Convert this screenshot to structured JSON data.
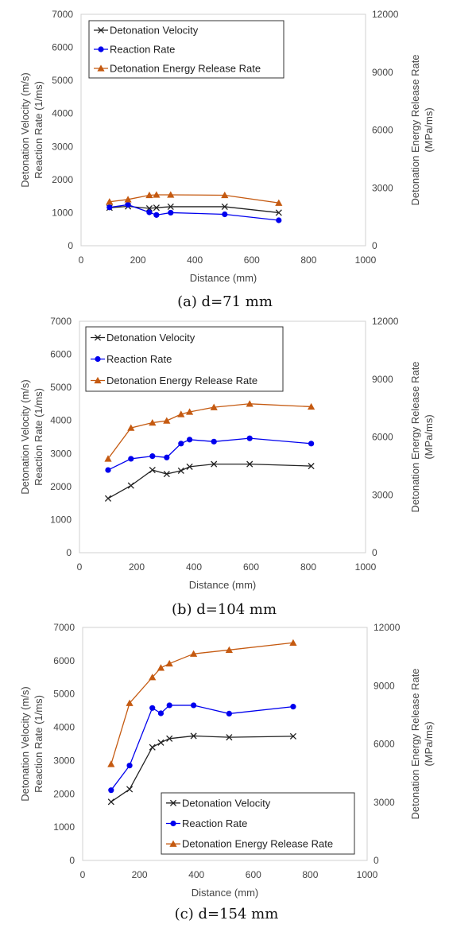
{
  "chart_data": [
    {
      "type": "line",
      "caption": "(a) d=71 mm",
      "xlabel": "Distance (mm)",
      "ylabel": [
        "Detonation Velocity (m/s)",
        "Reaction Rate (1/ms)"
      ],
      "y2label": [
        "Detonation Energy Release Rate",
        "(MPa/ms)"
      ],
      "xlim": [
        0,
        1000
      ],
      "ylim": [
        0,
        7000
      ],
      "y2lim": [
        0,
        12000
      ],
      "xticks": [
        0,
        200,
        400,
        600,
        800,
        1000
      ],
      "yticks": [
        0,
        1000,
        2000,
        3000,
        4000,
        5000,
        6000,
        7000
      ],
      "y2ticks": [
        0,
        3000,
        6000,
        9000,
        12000
      ],
      "legend_position": "top-left",
      "series": [
        {
          "name": "Detonation Velocity",
          "marker": "x",
          "color": "#222222",
          "axis": "left",
          "x": [
            100,
            165,
            240,
            265,
            315,
            505,
            695
          ],
          "y": [
            1150,
            1190,
            1130,
            1150,
            1180,
            1180,
            1000
          ]
        },
        {
          "name": "Reaction Rate",
          "marker": "circle",
          "color": "#0000ee",
          "axis": "left",
          "x": [
            100,
            165,
            240,
            265,
            315,
            505,
            695
          ],
          "y": [
            1160,
            1240,
            1010,
            930,
            1000,
            950,
            770
          ]
        },
        {
          "name": "Detonation Energy Release Rate",
          "marker": "triangle",
          "color": "#c55a11",
          "axis": "right",
          "x": [
            100,
            165,
            240,
            265,
            315,
            505,
            695
          ],
          "y": [
            2280,
            2400,
            2620,
            2640,
            2640,
            2620,
            2220
          ]
        }
      ]
    },
    {
      "type": "line",
      "caption": "(b) d=104 mm",
      "xlabel": "Distance (mm)",
      "ylabel": [
        "Detonation Velocity (m/s)",
        "Reaction Rate (1/ms)"
      ],
      "y2label": [
        "Detonation Energy Release Rate",
        "(MPa/ms)"
      ],
      "xlim": [
        0,
        1000
      ],
      "ylim": [
        0,
        7000
      ],
      "y2lim": [
        0,
        12000
      ],
      "xticks": [
        0,
        200,
        400,
        600,
        800,
        1000
      ],
      "yticks": [
        0,
        1000,
        2000,
        3000,
        4000,
        5000,
        6000,
        7000
      ],
      "y2ticks": [
        0,
        3000,
        6000,
        9000,
        12000
      ],
      "legend_position": "top-left",
      "series": [
        {
          "name": "Detonation Velocity",
          "marker": "x",
          "color": "#222222",
          "axis": "left",
          "x": [
            100,
            180,
            255,
            305,
            355,
            385,
            470,
            595,
            810
          ],
          "y": [
            1640,
            2030,
            2500,
            2380,
            2480,
            2600,
            2680,
            2680,
            2620
          ]
        },
        {
          "name": "Reaction Rate",
          "marker": "circle",
          "color": "#0000ee",
          "axis": "left",
          "x": [
            100,
            180,
            255,
            305,
            355,
            385,
            470,
            595,
            810
          ],
          "y": [
            2500,
            2840,
            2920,
            2880,
            3300,
            3420,
            3360,
            3460,
            3300
          ]
        },
        {
          "name": "Detonation Energy Release Rate",
          "marker": "triangle",
          "color": "#c55a11",
          "axis": "right",
          "x": [
            100,
            180,
            255,
            305,
            355,
            385,
            470,
            595,
            810
          ],
          "y": [
            4870,
            6470,
            6740,
            6840,
            7180,
            7300,
            7540,
            7720,
            7570
          ]
        }
      ]
    },
    {
      "type": "line",
      "caption": "(c) d=154 mm",
      "xlabel": "Distance (mm)",
      "ylabel": [
        "Detonation Velocity (m/s)",
        "Reaction Rate (1/ms)"
      ],
      "y2label": [
        "Detonation Energy Release Rate",
        "(MPa/ms)"
      ],
      "xlim": [
        0,
        1000
      ],
      "ylim": [
        0,
        7000
      ],
      "y2lim": [
        0,
        12000
      ],
      "xticks": [
        0,
        200,
        400,
        600,
        800,
        1000
      ],
      "yticks": [
        0,
        1000,
        2000,
        3000,
        4000,
        5000,
        6000,
        7000
      ],
      "y2ticks": [
        0,
        3000,
        6000,
        9000,
        12000
      ],
      "legend_position": "bottom-right",
      "series": [
        {
          "name": "Detonation Velocity",
          "marker": "x",
          "color": "#222222",
          "axis": "left",
          "x": [
            100,
            165,
            245,
            275,
            305,
            390,
            515,
            740
          ],
          "y": [
            1760,
            2140,
            3400,
            3540,
            3660,
            3740,
            3700,
            3730
          ]
        },
        {
          "name": "Reaction Rate",
          "marker": "circle",
          "color": "#0000ee",
          "axis": "left",
          "x": [
            100,
            165,
            245,
            275,
            305,
            390,
            515,
            740
          ],
          "y": [
            2110,
            2850,
            4580,
            4420,
            4660,
            4660,
            4410,
            4620
          ]
        },
        {
          "name": "Detonation Energy Release Rate",
          "marker": "triangle",
          "color": "#c55a11",
          "axis": "right",
          "x": [
            100,
            165,
            245,
            275,
            305,
            390,
            515,
            740
          ],
          "y": [
            4960,
            8100,
            9430,
            9920,
            10140,
            10640,
            10840,
            11210
          ]
        }
      ]
    }
  ]
}
